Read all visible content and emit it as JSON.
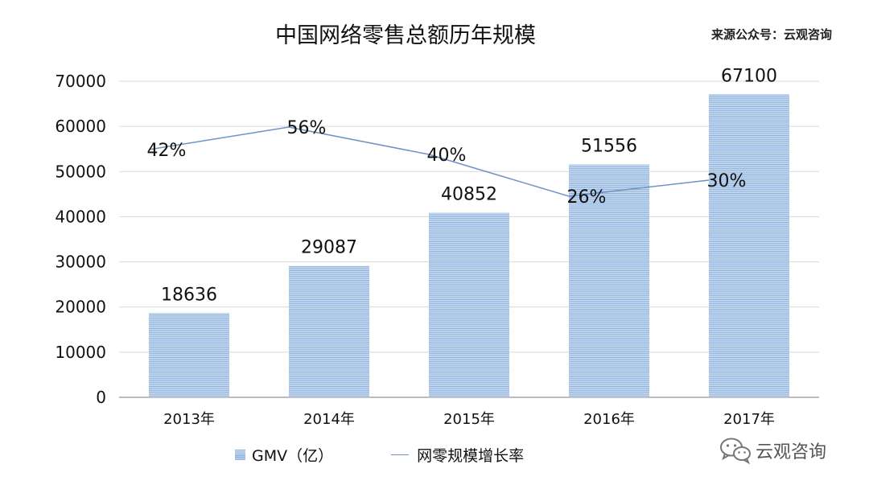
{
  "title": "中国网络零售总额历年规模",
  "source": "来源公众号：云观咨询",
  "watermark": {
    "text": "云观咨询",
    "icon": "wechat-icon"
  },
  "colors": {
    "bar": "#8aaedb",
    "bar_stripe": "#c9dcf0",
    "line": "#6f93c2",
    "grid": "#d9d9d9",
    "axis": "#a6a6a6"
  },
  "chart_data": {
    "type": "bar",
    "categories": [
      "2013年",
      "2014年",
      "2015年",
      "2016年",
      "2017年"
    ],
    "series": [
      {
        "name": "GMV（亿）",
        "type": "bar",
        "values": [
          18636,
          29087,
          40852,
          51556,
          67100
        ],
        "labels": [
          "18636",
          "29087",
          "40852",
          "51556",
          "67100"
        ]
      },
      {
        "name": "网零规模增长率",
        "type": "line",
        "values": [
          42,
          56,
          40,
          26,
          30
        ],
        "labels": [
          "42%",
          "56%",
          "40%",
          "26%",
          "30%"
        ]
      }
    ],
    "ylim": [
      0,
      70000
    ],
    "yticks": [
      "0",
      "10000",
      "20000",
      "30000",
      "40000",
      "50000",
      "60000",
      "70000"
    ],
    "grid": true,
    "legend": "bottom"
  }
}
